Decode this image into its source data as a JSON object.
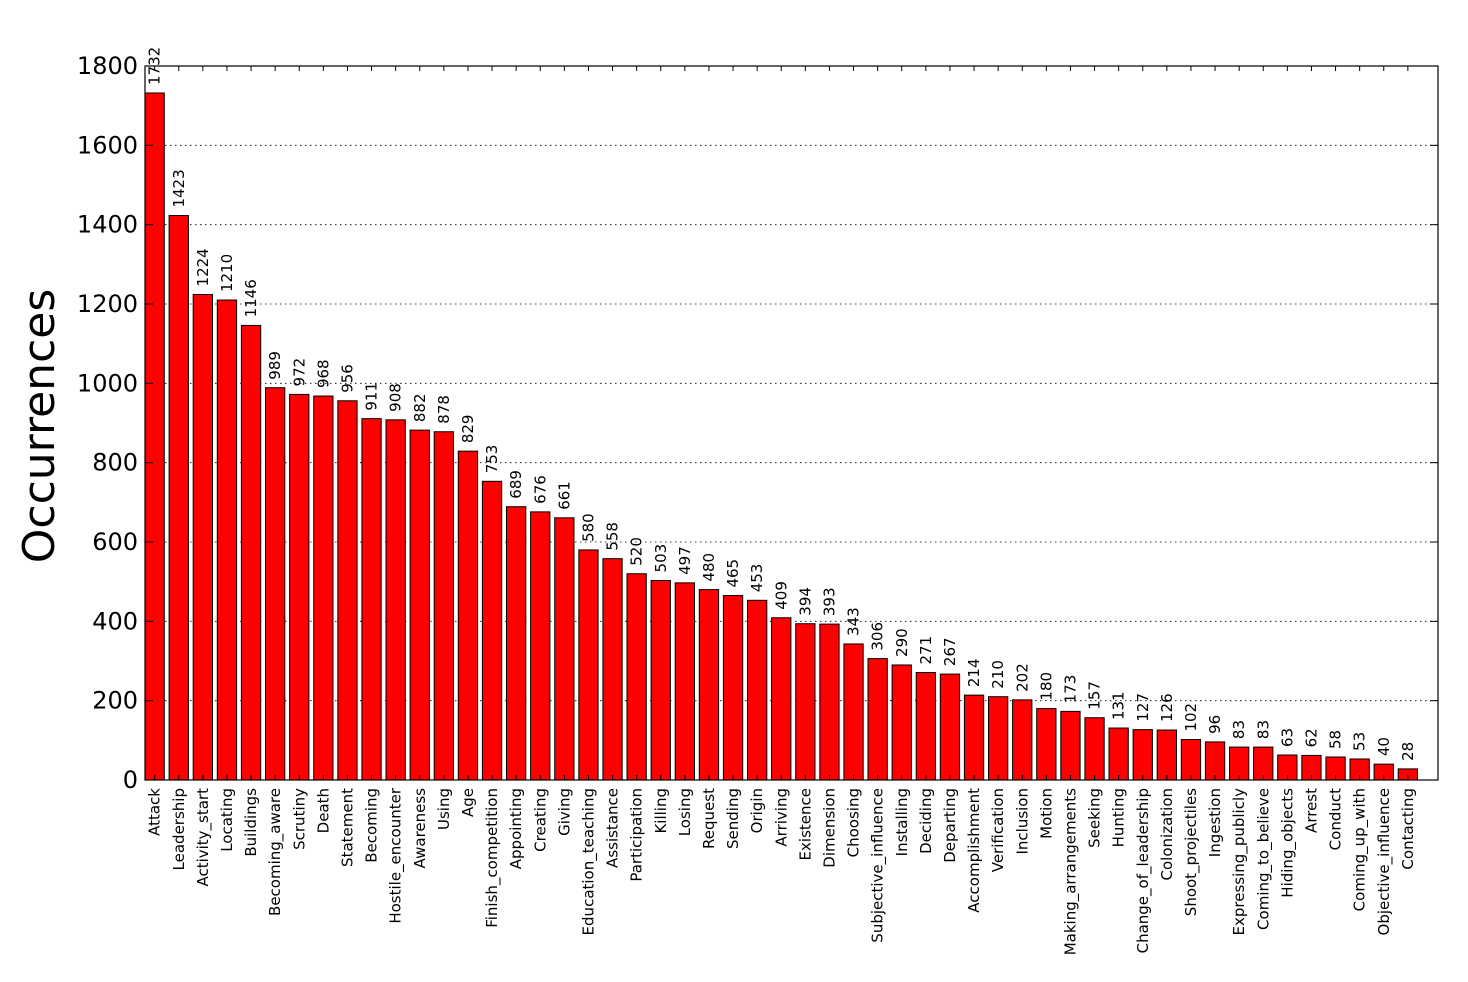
{
  "chart_data": {
    "type": "bar",
    "title": "",
    "xlabel": "",
    "ylabel": "Occurrences",
    "ylim": [
      0,
      1800
    ],
    "yticks": [
      0,
      200,
      400,
      600,
      800,
      1000,
      1200,
      1400,
      1600,
      1800
    ],
    "grid": "y-dotted",
    "bar_color": "#ff0000",
    "categories": [
      "Attack",
      "Leadership",
      "Activity_start",
      "Locating",
      "Buildings",
      "Becoming_aware",
      "Scrutiny",
      "Death",
      "Statement",
      "Becoming",
      "Hostile_encounter",
      "Awareness",
      "Using",
      "Age",
      "Finish_competition",
      "Appointing",
      "Creating",
      "Giving",
      "Education_teaching",
      "Assistance",
      "Participation",
      "Killing",
      "Losing",
      "Request",
      "Sending",
      "Origin",
      "Arriving",
      "Existence",
      "Dimension",
      "Choosing",
      "Subjective_influence",
      "Installing",
      "Deciding",
      "Departing",
      "Accomplishment",
      "Verification",
      "Inclusion",
      "Motion",
      "Making_arrangements",
      "Seeking",
      "Hunting",
      "Change_of_leadership",
      "Colonization",
      "Shoot_projectiles",
      "Ingestion",
      "Expressing_publicly",
      "Coming_to_believe",
      "Hiding_objects",
      "Arrest",
      "Conduct",
      "Coming_up_with",
      "Objective_influence",
      "Contacting"
    ],
    "values": [
      1732,
      1423,
      1224,
      1210,
      1146,
      989,
      972,
      968,
      956,
      911,
      908,
      882,
      878,
      829,
      753,
      689,
      676,
      661,
      580,
      558,
      520,
      503,
      497,
      480,
      465,
      453,
      409,
      394,
      393,
      343,
      306,
      290,
      271,
      267,
      214,
      210,
      202,
      180,
      173,
      157,
      131,
      127,
      126,
      102,
      96,
      83,
      83,
      63,
      62,
      58,
      53,
      40,
      28
    ]
  }
}
